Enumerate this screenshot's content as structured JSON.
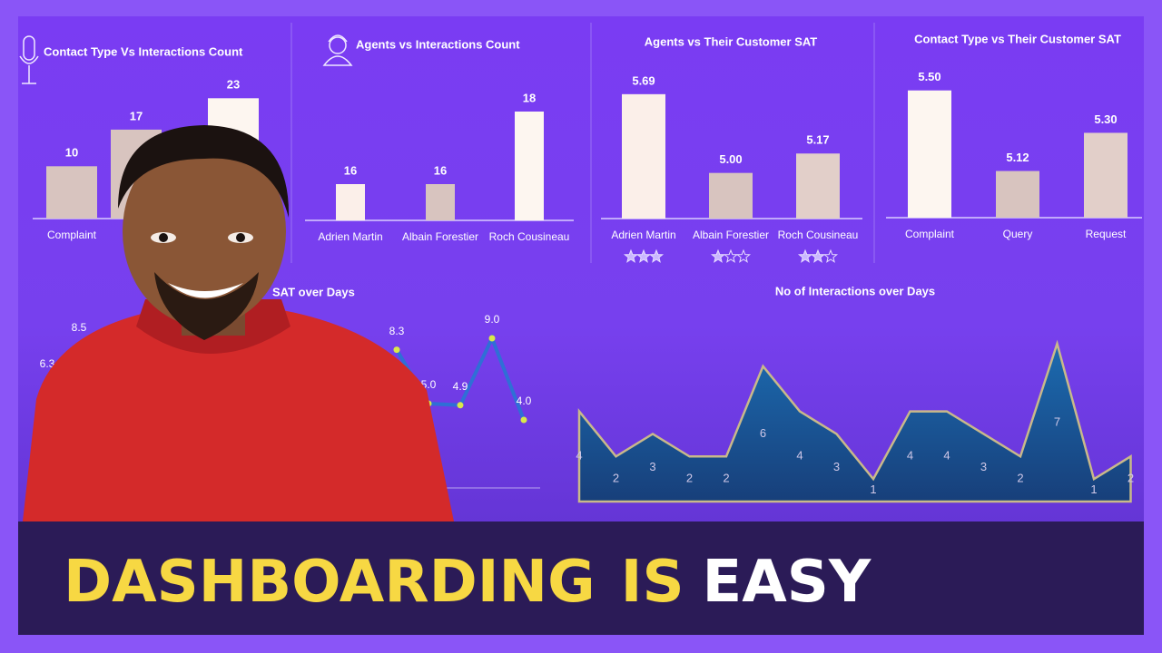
{
  "chart_data": [
    {
      "type": "bar",
      "title": "Contact Type Vs Interactions Count",
      "categories": [
        "Complaint",
        null,
        null
      ],
      "values": [
        10,
        17,
        23
      ],
      "colors": [
        "#d8c4bf",
        "#d8c4bf",
        "#fdf6f0"
      ],
      "ylim": [
        0,
        26
      ]
    },
    {
      "type": "bar",
      "title": "Agents vs Interactions Count",
      "categories": [
        "Adrien Martin",
        "Albain Forestier",
        "Roch Cousineau"
      ],
      "values": [
        16,
        16,
        18
      ],
      "colors": [
        "#fbefe9",
        "#d8c4bf",
        "#fdf6f0"
      ],
      "ylim": [
        15,
        18.5
      ]
    },
    {
      "type": "bar",
      "title": "Agents vs Their Customer SAT",
      "categories": [
        "Adrien Martin",
        "Albain Forestier",
        "Roch Cousineau"
      ],
      "values": [
        5.69,
        5.0,
        5.17
      ],
      "value_labels": [
        "5.69",
        "5.00",
        "5.17"
      ],
      "colors": [
        "#fbefe9",
        "#d8c4bf",
        "#e2cfc9"
      ],
      "ylim": [
        4.6,
        5.8
      ]
    },
    {
      "type": "bar",
      "title": "Contact Type vs Their Customer SAT",
      "categories": [
        "Complaint",
        "Query",
        "Request"
      ],
      "values": [
        5.5,
        5.12,
        5.3
      ],
      "value_labels": [
        "5.50",
        "5.12",
        "5.30"
      ],
      "colors": [
        "#fdf6f0",
        "#d8c4bf",
        "#e2cfc9"
      ],
      "ylim": [
        4.9,
        5.55
      ]
    },
    {
      "type": "line",
      "title": "SAT over Days",
      "values": [
        6.3,
        8.5,
        null,
        null,
        null,
        null,
        null,
        null,
        null,
        null,
        null,
        8.3,
        5.0,
        4.9,
        9.0,
        4.0
      ],
      "value_labels": [
        "6.3",
        "8.5",
        null,
        null,
        null,
        null,
        null,
        null,
        null,
        null,
        null,
        "8.3",
        "5.0",
        "4.9",
        "9.0",
        "4.0"
      ],
      "color": "#2f6fd6",
      "ylim": [
        0,
        10
      ]
    },
    {
      "type": "area",
      "title": "No of Interactions over Days",
      "values": [
        4,
        2,
        3,
        2,
        2,
        6,
        4,
        3,
        1,
        4,
        4,
        3,
        2,
        7,
        1,
        2
      ],
      "color": "#1d5e9e",
      "ylim": [
        0,
        7
      ]
    }
  ],
  "headline": [
    "DASHBOARDING",
    "IS",
    "EASY"
  ]
}
